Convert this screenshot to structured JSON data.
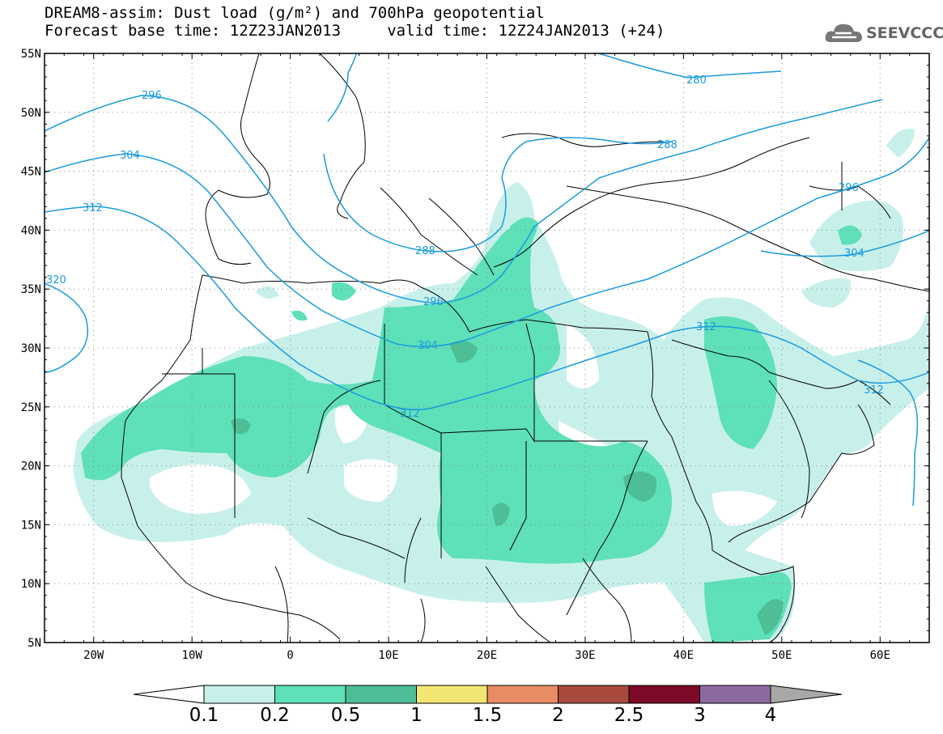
{
  "title": {
    "line1": "DREAM8-assim: Dust load (g/m²) and 700hPa geopotential",
    "line2": "Forecast base time: 12Z23JAN2013     valid time: 12Z24JAN2013 (+24)"
  },
  "logo": {
    "text": "SEEVCCC",
    "icon": "cloud-icon"
  },
  "axes": {
    "lat_labels": [
      "55N",
      "50N",
      "45N",
      "40N",
      "35N",
      "30N",
      "25N",
      "20N",
      "15N",
      "10N",
      "5N"
    ],
    "lon_labels": [
      "20W",
      "10W",
      "0",
      "10E",
      "20E",
      "30E",
      "40E",
      "50E",
      "60E"
    ],
    "lon_range": [
      -25,
      65
    ],
    "lat_range": [
      5,
      55
    ],
    "grid": "dotted"
  },
  "geopotential_contours": {
    "color": "#1a9be0",
    "labels": [
      "280",
      "288",
      "288",
      "296",
      "296",
      "296",
      "304",
      "304",
      "304",
      "312",
      "312",
      "312",
      "312",
      "320"
    ]
  },
  "colorbar": {
    "tick_labels": [
      "0.1",
      "0.2",
      "0.5",
      "1",
      "1.5",
      "2",
      "2.5",
      "3",
      "4"
    ],
    "colors": [
      "#c8f0ea",
      "#5ee0b8",
      "#4dbe96",
      "#f2e673",
      "#e88c64",
      "#a84a3c",
      "#7d0a28",
      "#8c6aa0",
      "#a8a8a8"
    ],
    "under_color": "#ffffff",
    "over_color": "#a8a8a8"
  },
  "dust_levels": {
    "0.1": "#c8f0ea",
    "0.2": "#5ee0b8",
    "0.5": "#4dbe96"
  }
}
